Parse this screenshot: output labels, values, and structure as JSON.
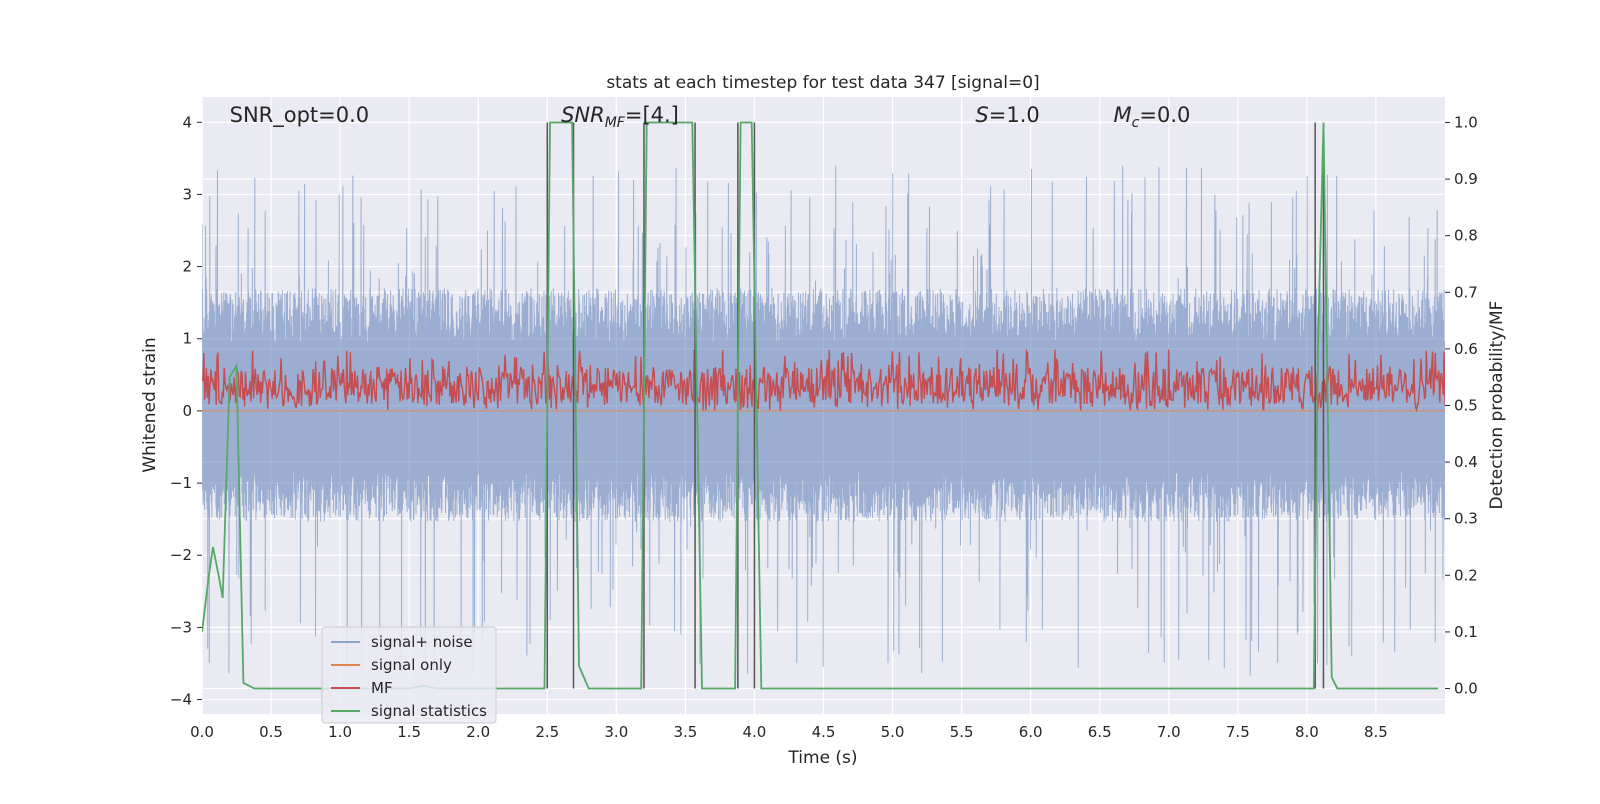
{
  "chart_data": {
    "type": "line",
    "title": "stats at each timestep for test data 347 [signal=0]",
    "xlabel": "Time (s)",
    "ylabel_left": "Whitened strain",
    "ylabel_right": "Detection probability/MF",
    "xlim": [
      0.0,
      9.0
    ],
    "ylim_left": [
      -4.2,
      4.35
    ],
    "ylim_right": [
      -0.045,
      1.045
    ],
    "xticks": [
      "0.0",
      "0.5",
      "1.0",
      "1.5",
      "2.0",
      "2.5",
      "3.0",
      "3.5",
      "4.0",
      "4.5",
      "5.0",
      "5.5",
      "6.0",
      "6.5",
      "7.0",
      "7.5",
      "8.0",
      "8.5"
    ],
    "yticks_left": [
      "−4",
      "−3",
      "−2",
      "−1",
      "0",
      "1",
      "2",
      "3",
      "4"
    ],
    "yticks_right": [
      "0.0",
      "0.1",
      "0.2",
      "0.3",
      "0.4",
      "0.5",
      "0.6",
      "0.7",
      "0.8",
      "0.9",
      "1.0"
    ],
    "grid": true,
    "legend_position": "lower-left",
    "annotations": [
      {
        "text": "SNR_opt=0.0",
        "x": 0.2
      },
      {
        "text": "SNR",
        "sub": "MF",
        "rest": "=[4.]",
        "x": 2.6,
        "italic": true
      },
      {
        "text": "S",
        "rest": "=1.0",
        "x": 5.6,
        "italic": true
      },
      {
        "text": "M",
        "sub": "c",
        "rest": "=0.0",
        "x": 6.6,
        "italic": true
      }
    ],
    "series": [
      {
        "name": "signal+ noise",
        "color": "#4c72b0",
        "envelope": {
          "typical": [
            -1.4,
            1.7
          ],
          "peaks": [
            -3.7,
            3.4
          ]
        }
      },
      {
        "name": "signal only",
        "color": "#dd8452",
        "constant": 0.0
      },
      {
        "name": "MF",
        "color": "#c44e52",
        "range": [
          0.0,
          0.85
        ]
      },
      {
        "name": "signal statistics",
        "color": "#55a868",
        "x": [
          0.0,
          0.05,
          0.08,
          0.12,
          0.15,
          0.2,
          0.25,
          0.3,
          0.38,
          1.5,
          1.6,
          1.7,
          2.48,
          2.52,
          2.62,
          2.68,
          2.73,
          2.8,
          3.18,
          3.22,
          3.27,
          3.55,
          3.62,
          3.86,
          3.9,
          3.98,
          4.05,
          8.05,
          8.08,
          8.12,
          8.18,
          8.22,
          8.95
        ],
        "y": [
          0.1,
          0.2,
          0.25,
          0.2,
          0.16,
          0.55,
          0.57,
          0.01,
          0.0,
          0.0,
          0.005,
          0.0,
          0.0,
          1.0,
          1.0,
          1.0,
          0.04,
          0.0,
          0.0,
          1.0,
          1.0,
          1.0,
          0.0,
          0.0,
          1.0,
          1.0,
          0.0,
          0.0,
          0.6,
          1.0,
          0.02,
          0.0,
          0.0
        ]
      }
    ],
    "vlines": [
      2.5,
      2.69,
      3.2,
      3.57,
      3.88,
      4.0,
      8.06,
      8.12
    ]
  }
}
